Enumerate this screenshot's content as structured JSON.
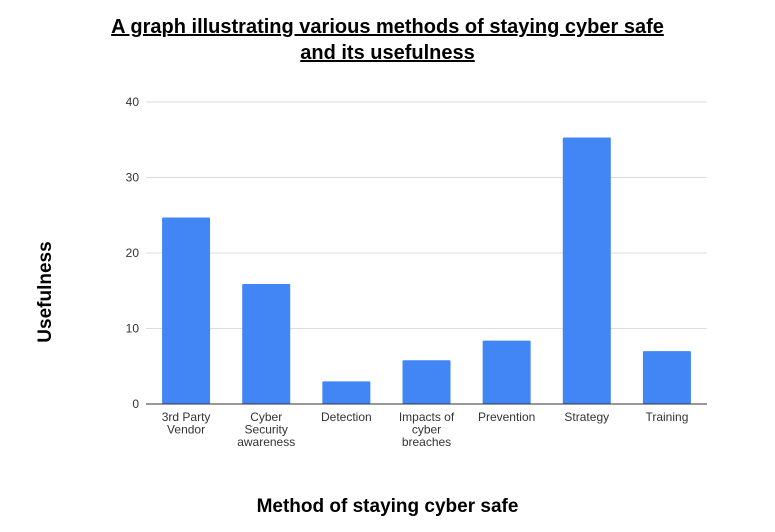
{
  "chart_data": {
    "type": "bar",
    "title_lines": [
      "A graph illustrating various methods of staying cyber safe",
      "and its usefulness"
    ],
    "xlabel": "Method of staying cyber safe",
    "ylabel": "Usefulness",
    "categories": [
      [
        "3rd Party",
        "Vendor"
      ],
      [
        "Cyber",
        "Security",
        "awareness"
      ],
      [
        "Detection"
      ],
      [
        "Impacts of",
        "cyber",
        "breaches"
      ],
      [
        "Prevention"
      ],
      [
        "Strategy"
      ],
      [
        "Training"
      ]
    ],
    "values": [
      24.7,
      15.9,
      3,
      5.8,
      8.4,
      35.3,
      7
    ],
    "ylim": [
      0,
      40
    ],
    "yticks": [
      0,
      10,
      20,
      30,
      40
    ],
    "grid": true,
    "bar_color": "#4285f4",
    "grid_color": "#dddddd",
    "axis_color": "#333333"
  }
}
